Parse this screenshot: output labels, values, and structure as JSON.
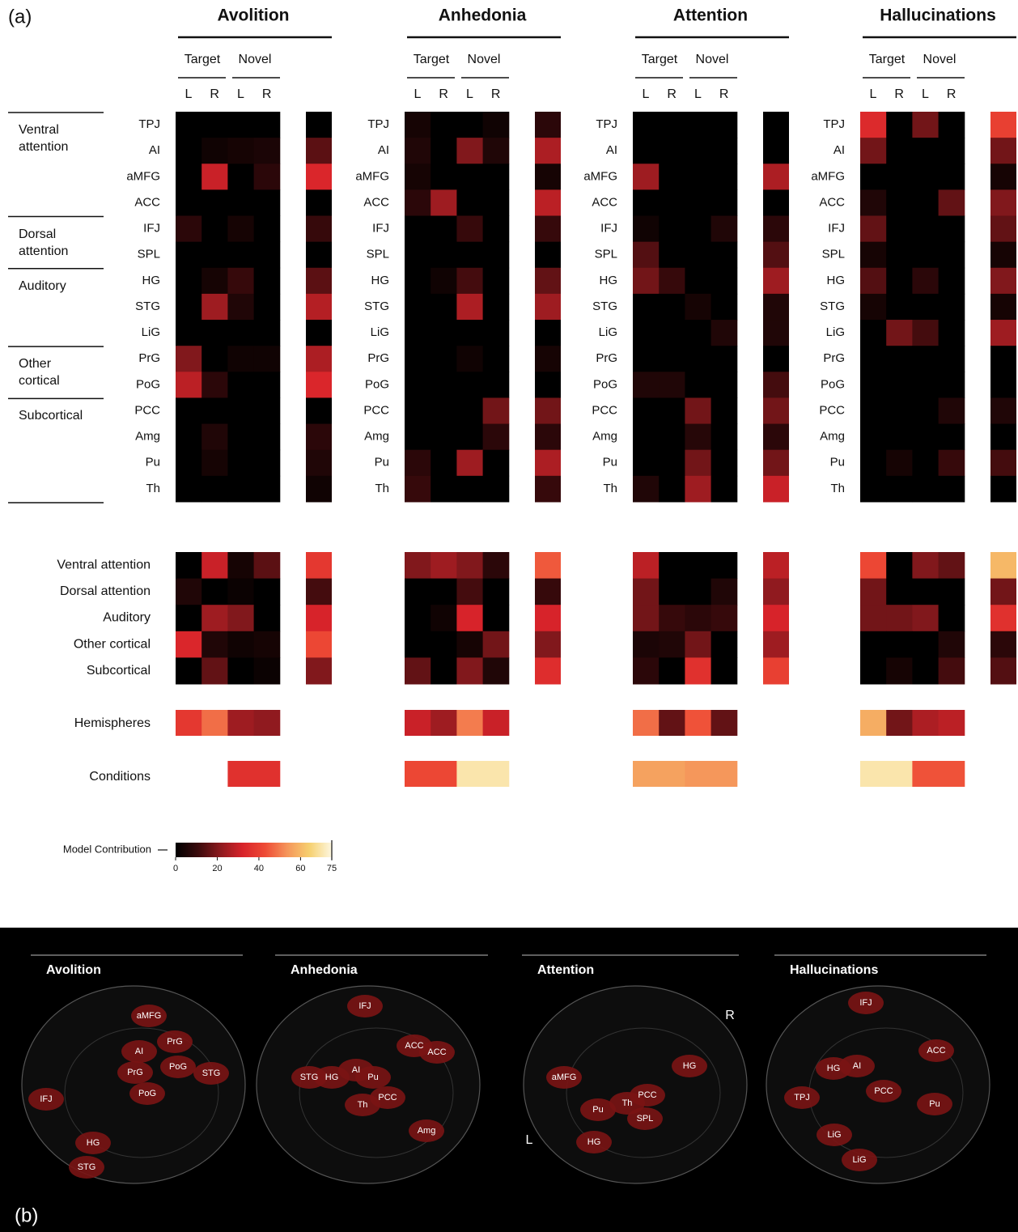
{
  "panel_a_label": "(a)",
  "panel_b_label": "(b)",
  "condition_labels": [
    "Target",
    "Novel"
  ],
  "hemisphere_labels": [
    "L",
    "R",
    "L",
    "R"
  ],
  "networks": [
    {
      "name": "Ventral attention",
      "regions": [
        "TPJ",
        "AI",
        "aMFG",
        "ACC"
      ]
    },
    {
      "name": "Dorsal attention",
      "regions": [
        "IFJ",
        "SPL"
      ]
    },
    {
      "name": "Auditory",
      "regions": [
        "HG",
        "STG",
        "LiG"
      ]
    },
    {
      "name": "Other cortical",
      "regions": [
        "PrG",
        "PoG"
      ]
    },
    {
      "name": "Subcortical",
      "regions": [
        "PCC",
        "Amg",
        "Pu",
        "Th"
      ]
    }
  ],
  "hemispheres_label": "Hemispheres",
  "conditions_label": "Conditions",
  "colorbar": {
    "label": "Model Contribution",
    "lim": [
      0,
      75
    ],
    "ticks": [
      0,
      20,
      40,
      60,
      75
    ]
  },
  "colormap": [
    "#000000",
    "#3a0a0c",
    "#8c1a1e",
    "#d8232a",
    "#ee4a35",
    "#f5955a",
    "#f6d070",
    "#fdf7e0"
  ],
  "panels": [
    {
      "title": "Avolition",
      "region_values": [
        [
          0,
          0,
          0,
          0
        ],
        [
          0,
          3,
          4,
          5
        ],
        [
          0,
          30,
          0,
          8
        ],
        [
          0,
          0,
          0,
          0
        ],
        [
          8,
          0,
          4,
          0
        ],
        [
          0,
          0,
          0,
          0
        ],
        [
          0,
          4,
          10,
          0
        ],
        [
          0,
          24,
          6,
          0
        ],
        [
          0,
          0,
          0,
          0
        ],
        [
          20,
          0,
          3,
          3
        ],
        [
          28,
          8,
          0,
          0
        ],
        [
          0,
          0,
          0,
          0
        ],
        [
          0,
          6,
          0,
          0
        ],
        [
          0,
          4,
          0,
          0
        ],
        [
          0,
          0,
          0,
          0
        ]
      ],
      "region_totals": [
        0,
        15,
        33,
        0,
        10,
        0,
        15,
        27,
        0,
        26,
        33,
        0,
        8,
        6,
        3
      ],
      "network_values": [
        [
          0,
          30,
          4,
          15
        ],
        [
          6,
          0,
          2,
          0
        ],
        [
          0,
          24,
          20,
          0
        ],
        [
          33,
          6,
          3,
          4
        ],
        [
          0,
          16,
          0,
          2
        ]
      ],
      "network_totals": [
        38,
        12,
        32,
        42,
        20
      ],
      "hemispheres": [
        38,
        48,
        24,
        22
      ],
      "conditions": [
        null,
        36
      ],
      "brain_labels": [
        "aMFG",
        "PrG",
        "AI",
        "PrG",
        "PoG",
        "STG",
        "PoG",
        "IFJ",
        "HG",
        "STG"
      ]
    },
    {
      "title": "Anhedonia",
      "region_values": [
        [
          4,
          0,
          0,
          3
        ],
        [
          6,
          0,
          20,
          6
        ],
        [
          4,
          0,
          0,
          0
        ],
        [
          8,
          24,
          0,
          0
        ],
        [
          0,
          0,
          10,
          0
        ],
        [
          0,
          0,
          0,
          0
        ],
        [
          0,
          3,
          12,
          0
        ],
        [
          0,
          0,
          26,
          0
        ],
        [
          0,
          0,
          0,
          0
        ],
        [
          0,
          0,
          3,
          0
        ],
        [
          0,
          0,
          0,
          0
        ],
        [
          0,
          0,
          0,
          18
        ],
        [
          0,
          0,
          0,
          8
        ],
        [
          8,
          0,
          24,
          0
        ],
        [
          10,
          0,
          0,
          0
        ]
      ],
      "region_totals": [
        8,
        26,
        4,
        28,
        10,
        0,
        16,
        24,
        0,
        4,
        0,
        18,
        8,
        26,
        10
      ],
      "network_values": [
        [
          20,
          24,
          20,
          8
        ],
        [
          0,
          0,
          12,
          0
        ],
        [
          0,
          3,
          32,
          0
        ],
        [
          0,
          0,
          4,
          18
        ],
        [
          16,
          0,
          20,
          6
        ]
      ],
      "network_totals": [
        45,
        10,
        32,
        20,
        35
      ],
      "hemispheres": [
        30,
        24,
        50,
        30
      ],
      "conditions": [
        42,
        70
      ],
      "brain_labels": [
        "IFJ",
        "ACC",
        "ACC",
        "STG",
        "HG",
        "AI",
        "Pu",
        "PCC",
        "Th",
        "Amg"
      ]
    },
    {
      "title": "Attention",
      "region_values": [
        [
          0,
          0,
          0,
          0
        ],
        [
          0,
          0,
          0,
          0
        ],
        [
          24,
          0,
          0,
          0
        ],
        [
          0,
          0,
          0,
          0
        ],
        [
          3,
          0,
          0,
          6
        ],
        [
          14,
          0,
          0,
          0
        ],
        [
          18,
          10,
          0,
          0
        ],
        [
          0,
          0,
          4,
          0
        ],
        [
          0,
          0,
          0,
          6
        ],
        [
          0,
          0,
          0,
          0
        ],
        [
          6,
          6,
          0,
          0
        ],
        [
          0,
          0,
          18,
          0
        ],
        [
          0,
          0,
          7,
          0
        ],
        [
          0,
          0,
          18,
          0
        ],
        [
          6,
          0,
          24,
          0
        ]
      ],
      "region_totals": [
        0,
        0,
        26,
        0,
        8,
        14,
        24,
        6,
        6,
        0,
        12,
        18,
        8,
        18,
        30
      ],
      "network_values": [
        [
          28,
          0,
          0,
          0
        ],
        [
          18,
          0,
          0,
          6
        ],
        [
          18,
          10,
          8,
          10
        ],
        [
          5,
          6,
          18,
          0
        ],
        [
          8,
          0,
          36,
          0
        ]
      ],
      "network_totals": [
        28,
        22,
        32,
        24,
        40
      ],
      "hemispheres": [
        48,
        16,
        44,
        16
      ],
      "conditions": [
        56,
        54
      ],
      "brain_labels": [
        "aMFG",
        "Pu",
        "HG",
        "Th",
        "PCC",
        "SPL",
        "HG"
      ]
    },
    {
      "title": "Hallucinations",
      "region_values": [
        [
          34,
          0,
          18,
          0
        ],
        [
          18,
          0,
          0,
          0
        ],
        [
          0,
          0,
          0,
          0
        ],
        [
          6,
          0,
          0,
          16
        ],
        [
          16,
          0,
          0,
          0
        ],
        [
          4,
          0,
          0,
          0
        ],
        [
          14,
          0,
          8,
          0
        ],
        [
          4,
          0,
          0,
          0
        ],
        [
          0,
          18,
          12,
          0
        ],
        [
          0,
          0,
          0,
          0
        ],
        [
          0,
          0,
          0,
          0
        ],
        [
          0,
          0,
          0,
          6
        ],
        [
          0,
          0,
          0,
          0
        ],
        [
          0,
          4,
          0,
          10
        ],
        [
          0,
          0,
          0,
          0
        ]
      ],
      "region_totals": [
        40,
        18,
        4,
        20,
        16,
        4,
        20,
        4,
        24,
        0,
        0,
        6,
        0,
        12,
        0
      ],
      "network_values": [
        [
          42,
          0,
          20,
          16
        ],
        [
          18,
          0,
          0,
          0
        ],
        [
          18,
          18,
          20,
          0
        ],
        [
          0,
          0,
          0,
          6
        ],
        [
          0,
          4,
          0,
          12
        ]
      ],
      "network_totals": [
        60,
        18,
        36,
        8,
        14
      ],
      "hemispheres": [
        58,
        18,
        26,
        28
      ],
      "conditions": [
        70,
        44
      ],
      "brain_labels": [
        "IFJ",
        "ACC",
        "HG",
        "AI",
        "PCC",
        "Pu",
        "TPJ",
        "LiG",
        "LiG"
      ]
    }
  ],
  "orientation_labels": [
    "R",
    "L"
  ]
}
